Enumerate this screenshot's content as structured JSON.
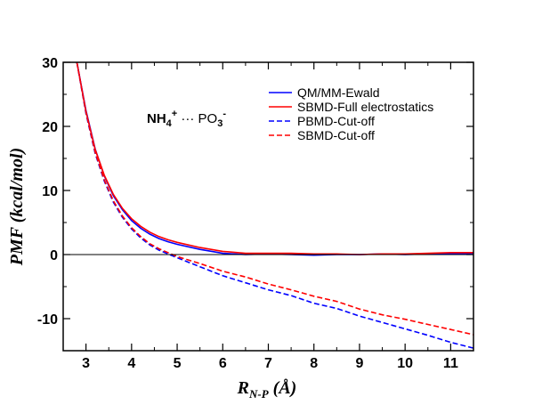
{
  "chart_data": {
    "type": "line",
    "title": "",
    "xlabel": {
      "main": "R",
      "subscript": "N-P",
      "unit": " (Å)"
    },
    "ylabel": "PMF (kcal/mol)",
    "xlim": [
      2.5,
      11.5
    ],
    "ylim": [
      -15,
      30
    ],
    "xticks": [
      3,
      4,
      5,
      6,
      7,
      8,
      9,
      10,
      11
    ],
    "xtick_labels": [
      "3",
      "4",
      "5",
      "6",
      "7",
      "8",
      "9",
      "10",
      "11"
    ],
    "yticks": [
      -10,
      0,
      10,
      20,
      30
    ],
    "ytick_labels": [
      "-10",
      "0",
      "10",
      "20",
      "30"
    ],
    "grid": false,
    "zero_line": true,
    "legend_position": "top-right",
    "annotation": {
      "text_parts": [
        "NH",
        "4",
        "+",
        " ··· PO",
        "3",
        "-"
      ]
    },
    "series": [
      {
        "name": "QM/MM-Ewald",
        "color": "#0000ff",
        "dash": "solid",
        "x": [
          2.8,
          3.0,
          3.2,
          3.4,
          3.6,
          3.8,
          4.0,
          4.2,
          4.4,
          4.6,
          4.8,
          5.0,
          5.5,
          6.0,
          6.5,
          7.0,
          7.5,
          8.0,
          8.5,
          9.0,
          9.5,
          10.0,
          10.5,
          11.0,
          11.5
        ],
        "y": [
          30,
          22.5,
          16.5,
          12.3,
          9.2,
          7.0,
          5.3,
          4.1,
          3.2,
          2.5,
          2.0,
          1.6,
          0.8,
          0.2,
          0.0,
          0.1,
          0.0,
          -0.1,
          0.0,
          0.0,
          0.1,
          0.0,
          0.1,
          0.1,
          0.2
        ]
      },
      {
        "name": "SBMD-Full electrostatics",
        "color": "#ff0000",
        "dash": "solid",
        "x": [
          2.8,
          3.0,
          3.2,
          3.4,
          3.6,
          3.8,
          4.0,
          4.2,
          4.4,
          4.6,
          4.8,
          5.0,
          5.5,
          6.0,
          6.5,
          7.0,
          7.5,
          8.0,
          8.5,
          9.0,
          9.5,
          10.0,
          10.5,
          11.0,
          11.5
        ],
        "y": [
          30,
          22.3,
          16.4,
          12.4,
          9.4,
          7.2,
          5.6,
          4.4,
          3.5,
          2.8,
          2.3,
          1.9,
          1.1,
          0.5,
          0.2,
          0.2,
          0.2,
          0.1,
          0.1,
          0.0,
          0.1,
          0.1,
          0.2,
          0.3,
          0.3
        ]
      },
      {
        "name": "PBMD-Cut-off",
        "color": "#0000ff",
        "dash": "dashed",
        "x": [
          2.8,
          3.0,
          3.2,
          3.4,
          3.6,
          3.8,
          4.0,
          4.2,
          4.4,
          4.6,
          4.8,
          5.0,
          5.5,
          6.0,
          6.5,
          7.0,
          7.5,
          8.0,
          8.5,
          9.0,
          9.5,
          10.0,
          10.5,
          11.0,
          11.5
        ],
        "y": [
          30,
          22.0,
          15.8,
          11.5,
          8.2,
          5.8,
          4.0,
          2.6,
          1.5,
          0.7,
          0.1,
          -0.5,
          -1.9,
          -3.3,
          -4.4,
          -5.5,
          -6.4,
          -7.6,
          -8.4,
          -9.6,
          -10.6,
          -11.6,
          -12.6,
          -13.7,
          -14.6
        ]
      },
      {
        "name": "SBMD-Cut-off",
        "color": "#ff0000",
        "dash": "dashed",
        "x": [
          2.8,
          3.0,
          3.2,
          3.4,
          3.6,
          3.8,
          4.0,
          4.2,
          4.4,
          4.6,
          4.8,
          5.0,
          5.5,
          6.0,
          6.5,
          7.0,
          7.5,
          8.0,
          8.5,
          9.0,
          9.5,
          10.0,
          10.5,
          11.0,
          11.5
        ],
        "y": [
          30,
          22.2,
          16.0,
          11.7,
          8.4,
          6.0,
          4.2,
          2.8,
          1.7,
          0.9,
          0.3,
          -0.3,
          -1.4,
          -2.6,
          -3.5,
          -4.6,
          -5.5,
          -6.5,
          -7.3,
          -8.5,
          -9.4,
          -10.1,
          -10.9,
          -11.7,
          -12.5
        ]
      }
    ]
  }
}
